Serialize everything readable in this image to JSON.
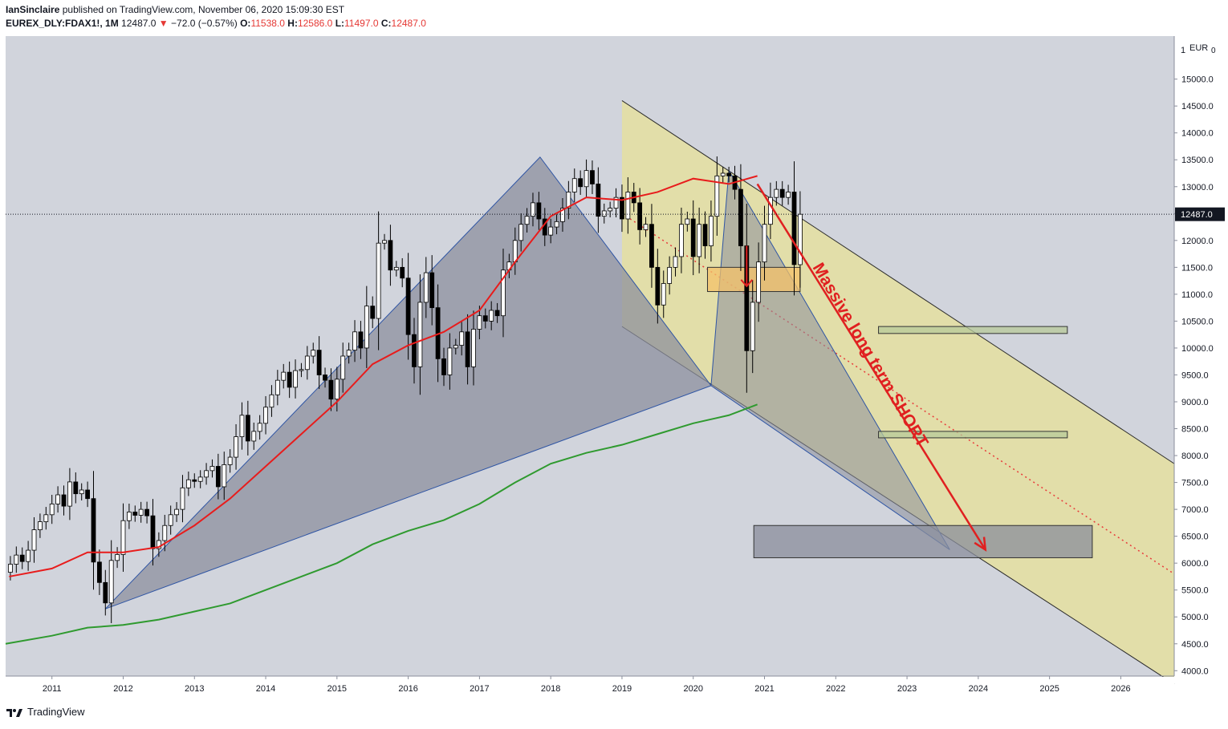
{
  "header": {
    "author": "IanSinclaire",
    "published_text": "published on TradingView.com, November 06, 2020 15:09:30 EST",
    "symbol": "EUREX_DLY:FDAX1!, 1M",
    "last": "12487.0",
    "change_arrow": "▼",
    "change": "−72.0 (−0.57%)",
    "open_label": "O:",
    "open": "11538.0",
    "high_label": "H:",
    "high": "12586.0",
    "low_label": "L:",
    "low": "11497.0",
    "close_label": "C:",
    "close": "12487.0"
  },
  "footer": {
    "brand": "TradingView",
    "logo_icon": "tradingview-logo-icon"
  },
  "colors": {
    "background": "#d1d4dc",
    "up": "#ffffff",
    "down": "#000000",
    "ma_fast": "#e81c1c",
    "ma_slow": "#2f9a2f",
    "channel_fill": "#e5dfa0",
    "triangle_fill": "#8a8e9c",
    "arrow": "#e02020"
  },
  "annotation": "Massive long term SHORT",
  "chart_data": {
    "type": "candlestick",
    "title": "",
    "currency": "EUR",
    "price_scale_marker": "1",
    "y_unit_marker": "0",
    "last_price_label": "12487.0",
    "ylim": [
      3900,
      15800
    ],
    "x_range": [
      2010.35,
      2026.75
    ],
    "y_ticks": [
      "15000.0",
      "14500.0",
      "14000.0",
      "13500.0",
      "13000.0",
      "12500.0",
      "12000.0",
      "11500.0",
      "11000.0",
      "10500.0",
      "10000.0",
      "9500.0",
      "9000.0",
      "8500.0",
      "8000.0",
      "7500.0",
      "7000.0",
      "6500.0",
      "6000.0",
      "5500.0",
      "5000.0",
      "4500.0",
      "4000.0"
    ],
    "x_ticks": [
      "2011",
      "2012",
      "2013",
      "2014",
      "2015",
      "2016",
      "2017",
      "2018",
      "2019",
      "2020",
      "2021",
      "2022",
      "2023",
      "2024",
      "2025",
      "2026"
    ],
    "grid": false,
    "monthly_closes_2010_06_to_2020_11": [
      5980,
      6150,
      6030,
      6240,
      6620,
      6770,
      6900,
      7100,
      7270,
      7060,
      7510,
      7290,
      7360,
      7200,
      6020,
      5640,
      5260,
      6050,
      6160,
      6790,
      6950,
      6890,
      7000,
      6880,
      6270,
      6420,
      6700,
      6900,
      7000,
      7400,
      7550,
      7520,
      7600,
      7720,
      7800,
      7420,
      7830,
      7970,
      8350,
      8750,
      8270,
      8450,
      8600,
      8900,
      9130,
      9400,
      9550,
      9270,
      9580,
      9600,
      9850,
      9960,
      9500,
      9400,
      9050,
      9420,
      9850,
      9960,
      10300,
      10000,
      10780,
      10550,
      11950,
      12000,
      11450,
      11500,
      11300,
      10250,
      9650,
      10850,
      11400,
      10750,
      9800,
      9500,
      10000,
      10050,
      10300,
      9650,
      10350,
      10600,
      10500,
      10700,
      10600,
      11450,
      11600,
      12000,
      12300,
      12450,
      12700,
      12400,
      12100,
      12250,
      12350,
      12600,
      12900,
      13150,
      13000,
      13300,
      13050,
      12450,
      12550,
      12600,
      12800,
      12400,
      12900,
      12700,
      12200,
      12300,
      11500,
      10800,
      11200,
      11500,
      11700,
      12300,
      12400,
      11700,
      12300,
      11900,
      12450,
      13200,
      13250,
      13200,
      12950,
      11900,
      9950,
      10850,
      11600,
      12300,
      12800,
      12950,
      12800,
      12900,
      11550,
      12487
    ],
    "series": [
      {
        "name": "",
        "type": "line",
        "color": "#e81c1c",
        "points": [
          [
            2010.4,
            5750
          ],
          [
            2011.0,
            5900
          ],
          [
            2011.5,
            6200
          ],
          [
            2012.0,
            6200
          ],
          [
            2012.5,
            6300
          ],
          [
            2013.0,
            6700
          ],
          [
            2013.5,
            7200
          ],
          [
            2014.0,
            7800
          ],
          [
            2014.5,
            8400
          ],
          [
            2015.0,
            9000
          ],
          [
            2015.5,
            9700
          ],
          [
            2016.0,
            10050
          ],
          [
            2016.5,
            10300
          ],
          [
            2017.0,
            10700
          ],
          [
            2017.5,
            11600
          ],
          [
            2018.0,
            12450
          ],
          [
            2018.5,
            12800
          ],
          [
            2019.0,
            12750
          ],
          [
            2019.5,
            12900
          ],
          [
            2020.0,
            13150
          ],
          [
            2020.5,
            13050
          ],
          [
            2020.9,
            13200
          ]
        ]
      },
      {
        "name": "",
        "type": "line",
        "color": "#2f9a2f",
        "points": [
          [
            2010.35,
            4500
          ],
          [
            2011.0,
            4650
          ],
          [
            2011.5,
            4800
          ],
          [
            2012.0,
            4850
          ],
          [
            2012.5,
            4950
          ],
          [
            2013.0,
            5100
          ],
          [
            2013.5,
            5250
          ],
          [
            2014.0,
            5500
          ],
          [
            2014.5,
            5750
          ],
          [
            2015.0,
            6000
          ],
          [
            2015.5,
            6350
          ],
          [
            2016.0,
            6600
          ],
          [
            2016.5,
            6800
          ],
          [
            2017.0,
            7100
          ],
          [
            2017.5,
            7500
          ],
          [
            2018.0,
            7850
          ],
          [
            2018.5,
            8050
          ],
          [
            2019.0,
            8200
          ],
          [
            2019.5,
            8400
          ],
          [
            2020.0,
            8600
          ],
          [
            2020.5,
            8750
          ],
          [
            2020.9,
            8950
          ]
        ]
      }
    ],
    "drawings": {
      "channel_upper": [
        [
          2019.0,
          14600
        ],
        [
          2026.75,
          7850
        ]
      ],
      "channel_lower": [
        [
          2019.0,
          10400
        ],
        [
          2026.75,
          3750
        ]
      ],
      "channel_mid_dotted": [
        [
          2019.0,
          12500
        ],
        [
          2026.75,
          5800
        ]
      ],
      "triangle_1": [
        [
          2011.75,
          5150
        ],
        [
          2017.85,
          13550
        ],
        [
          2020.25,
          9300
        ]
      ],
      "triangle_2": [
        [
          2020.5,
          13300
        ],
        [
          2023.6,
          6250
        ],
        [
          2020.25,
          9300
        ]
      ],
      "boxes": [
        {
          "name": "orange",
          "x": [
            2020.2,
            2021.5
          ],
          "y": [
            11050,
            11500
          ],
          "color": "#f4c16a"
        },
        {
          "name": "green-upper",
          "x": [
            2022.6,
            2025.25
          ],
          "y": [
            10270,
            10400
          ],
          "color": "#b7c99a"
        },
        {
          "name": "green-lower",
          "x": [
            2022.6,
            2025.25
          ],
          "y": [
            8330,
            8450
          ],
          "color": "#b7c99a"
        },
        {
          "name": "grey-target",
          "x": [
            2020.85,
            2025.6
          ],
          "y": [
            6100,
            6700
          ],
          "color": "#8a8e9c"
        }
      ],
      "short_arrow": [
        [
          2020.9,
          13050
        ],
        [
          2024.1,
          6250
        ]
      ],
      "small_arrow": [
        [
          2020.75,
          11900
        ],
        [
          2020.75,
          11150
        ]
      ]
    }
  }
}
